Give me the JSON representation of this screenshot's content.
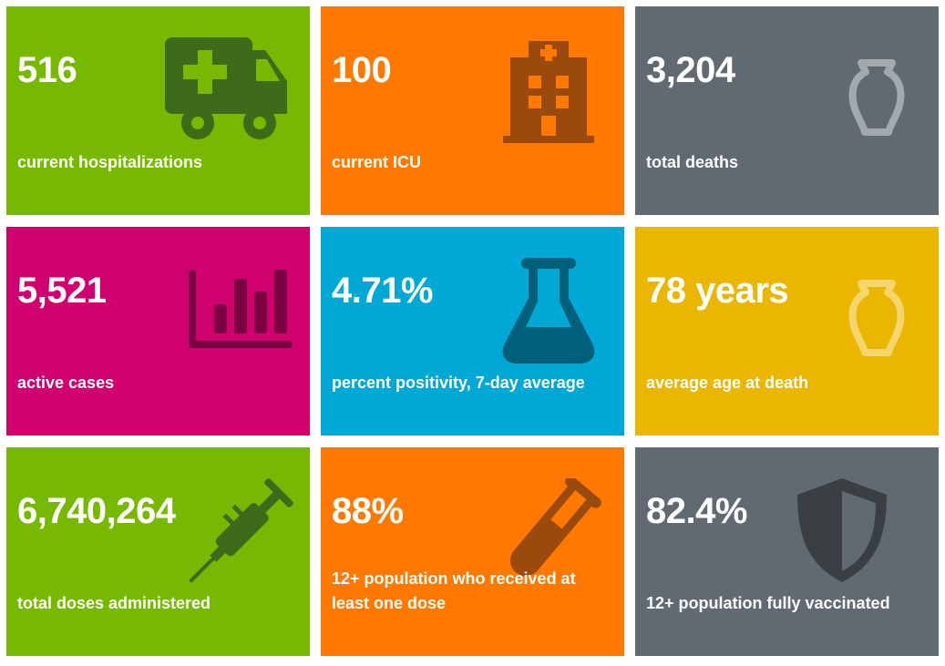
{
  "colors": {
    "green": "#77b800",
    "orange": "#ff7800",
    "gray": "#616a72",
    "magenta": "#d1006f",
    "blue": "#00a8d6",
    "gold": "#ebb600"
  },
  "tiles": [
    {
      "value": "516",
      "label": "current hospitalizations",
      "icon": "ambulance-icon",
      "color": "green"
    },
    {
      "value": "100",
      "label": "current ICU",
      "icon": "hospital-icon",
      "color": "orange"
    },
    {
      "value": "3,204",
      "label": "total deaths",
      "icon": "urn-icon",
      "color": "gray"
    },
    {
      "value": "5,521",
      "label": "active cases",
      "icon": "bar-chart-icon",
      "color": "magenta"
    },
    {
      "value": "4.71%",
      "label": "percent positivity, 7-day average",
      "icon": "flask-icon",
      "color": "blue"
    },
    {
      "value": "78 years",
      "label": "average age at death",
      "icon": "urn-icon",
      "color": "gold"
    },
    {
      "value": "6,740,264",
      "label": "total doses administered",
      "icon": "syringe-icon",
      "color": "green"
    },
    {
      "value": "88%",
      "label": "12+ population who received at least one dose",
      "icon": "test-tube-icon",
      "color": "orange"
    },
    {
      "value": "82.4%",
      "label": "12+ population fully vaccinated",
      "icon": "shield-icon",
      "color": "gray"
    }
  ]
}
